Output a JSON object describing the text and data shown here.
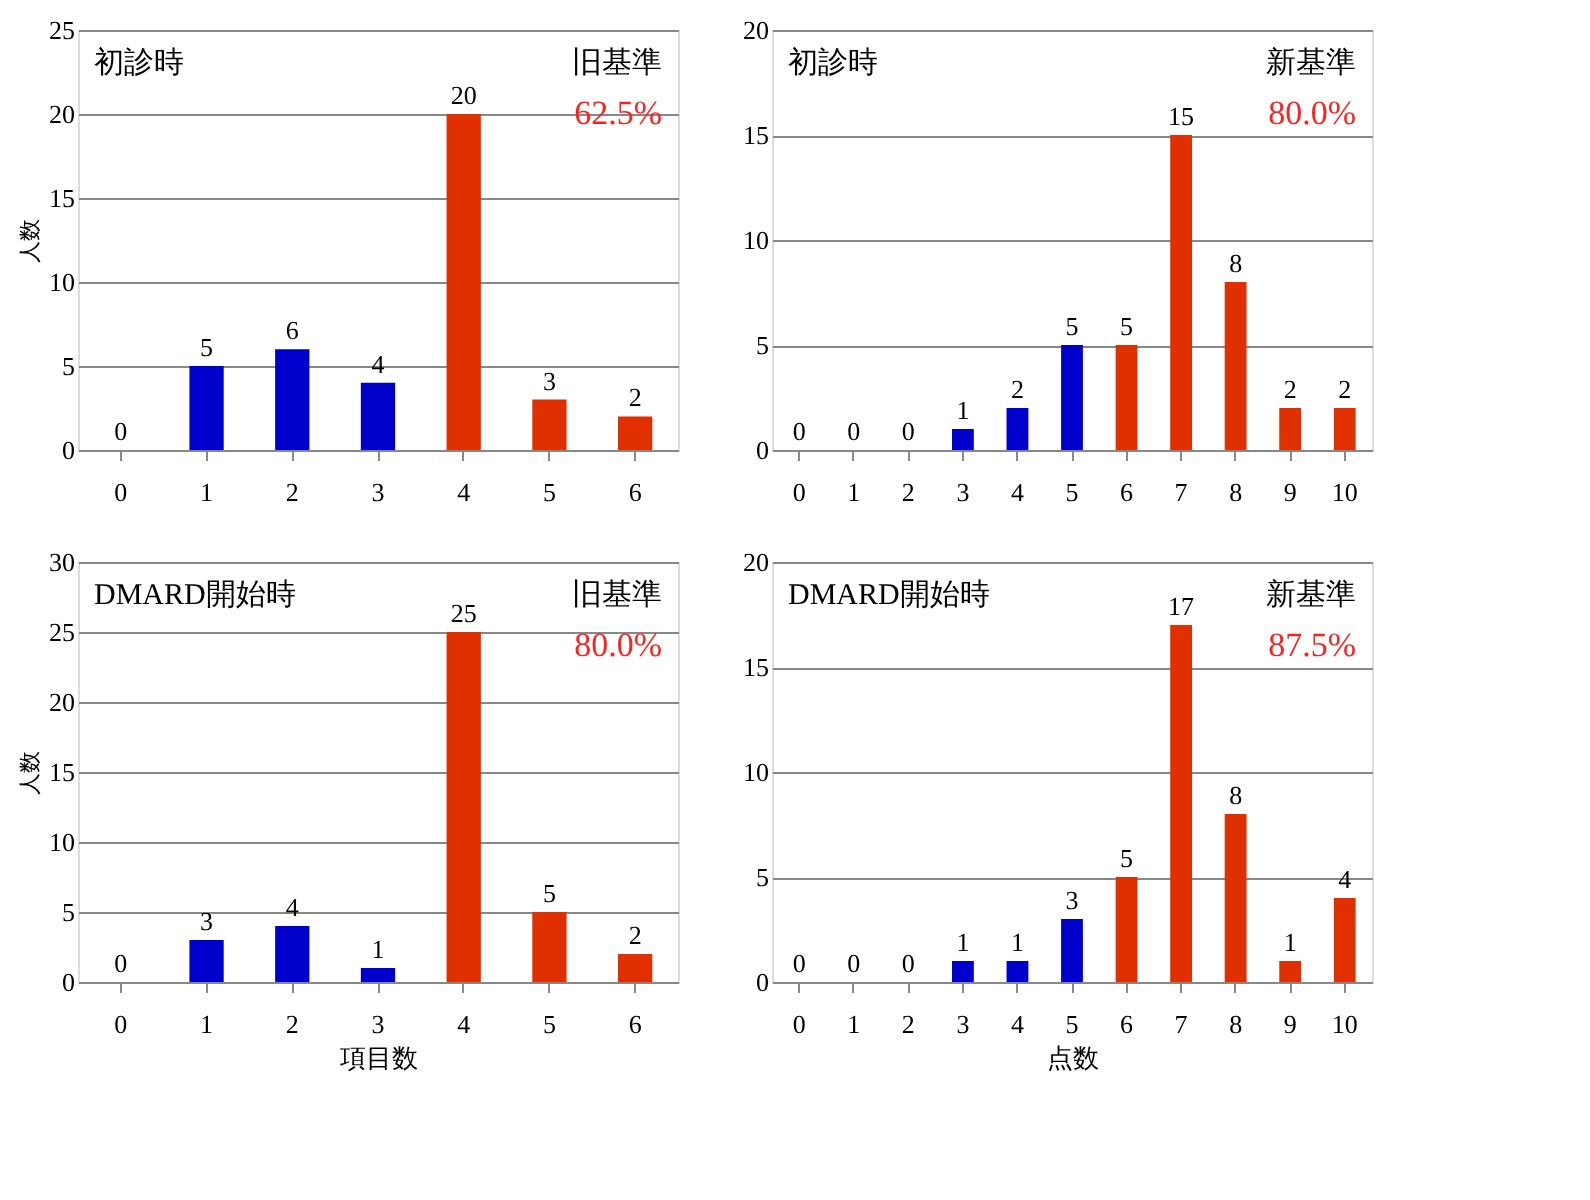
{
  "chart_data": [
    {
      "type": "bar",
      "categories": [
        "0",
        "1",
        "2",
        "3",
        "4",
        "5",
        "6"
      ],
      "values": [
        0,
        5,
        6,
        4,
        20,
        3,
        2
      ],
      "colors": [
        "#0000cc",
        "#0000cc",
        "#0000cc",
        "#0000cc",
        "#e03000",
        "#e03000",
        "#e03000"
      ],
      "ylim": [
        0,
        25
      ],
      "yticks": [
        0,
        5,
        10,
        15,
        20,
        25
      ],
      "ylabel": "人数",
      "grid": "y",
      "data_labels": true,
      "annotations": [
        "初診時",
        "旧基準",
        "62.5%"
      ]
    },
    {
      "type": "bar",
      "categories": [
        "0",
        "1",
        "2",
        "3",
        "4",
        "5",
        "6",
        "7",
        "8",
        "9",
        "10"
      ],
      "values": [
        0,
        0,
        0,
        1,
        2,
        5,
        5,
        15,
        8,
        2,
        2
      ],
      "colors": [
        "#0000cc",
        "#0000cc",
        "#0000cc",
        "#0000cc",
        "#0000cc",
        "#0000cc",
        "#e03000",
        "#e03000",
        "#e03000",
        "#e03000",
        "#e03000"
      ],
      "ylim": [
        0,
        20
      ],
      "yticks": [
        0,
        5,
        10,
        15,
        20
      ],
      "grid": "y",
      "data_labels": true,
      "annotations": [
        "初診時",
        "新基準",
        "80.0%"
      ]
    },
    {
      "type": "bar",
      "categories": [
        "0",
        "1",
        "2",
        "3",
        "4",
        "5",
        "6"
      ],
      "values": [
        0,
        3,
        4,
        1,
        25,
        5,
        2
      ],
      "colors": [
        "#0000cc",
        "#0000cc",
        "#0000cc",
        "#0000cc",
        "#e03000",
        "#e03000",
        "#e03000"
      ],
      "ylim": [
        0,
        30
      ],
      "yticks": [
        0,
        5,
        10,
        15,
        20,
        25,
        30
      ],
      "ylabel": "人数",
      "xlabel": "項目数",
      "grid": "y",
      "data_labels": true,
      "annotations": [
        "DMARD開始時",
        "旧基準",
        "80.0%"
      ]
    },
    {
      "type": "bar",
      "categories": [
        "0",
        "1",
        "2",
        "3",
        "4",
        "5",
        "6",
        "7",
        "8",
        "9",
        "10"
      ],
      "values": [
        0,
        0,
        0,
        1,
        1,
        3,
        5,
        17,
        8,
        1,
        4
      ],
      "colors": [
        "#0000cc",
        "#0000cc",
        "#0000cc",
        "#0000cc",
        "#0000cc",
        "#0000cc",
        "#e03000",
        "#e03000",
        "#e03000",
        "#e03000",
        "#e03000"
      ],
      "ylim": [
        0,
        20
      ],
      "yticks": [
        0,
        5,
        10,
        15,
        20
      ],
      "xlabel": "点数",
      "grid": "y",
      "data_labels": true,
      "annotations": [
        "DMARD開始時",
        "新基準",
        "87.5%"
      ]
    }
  ]
}
